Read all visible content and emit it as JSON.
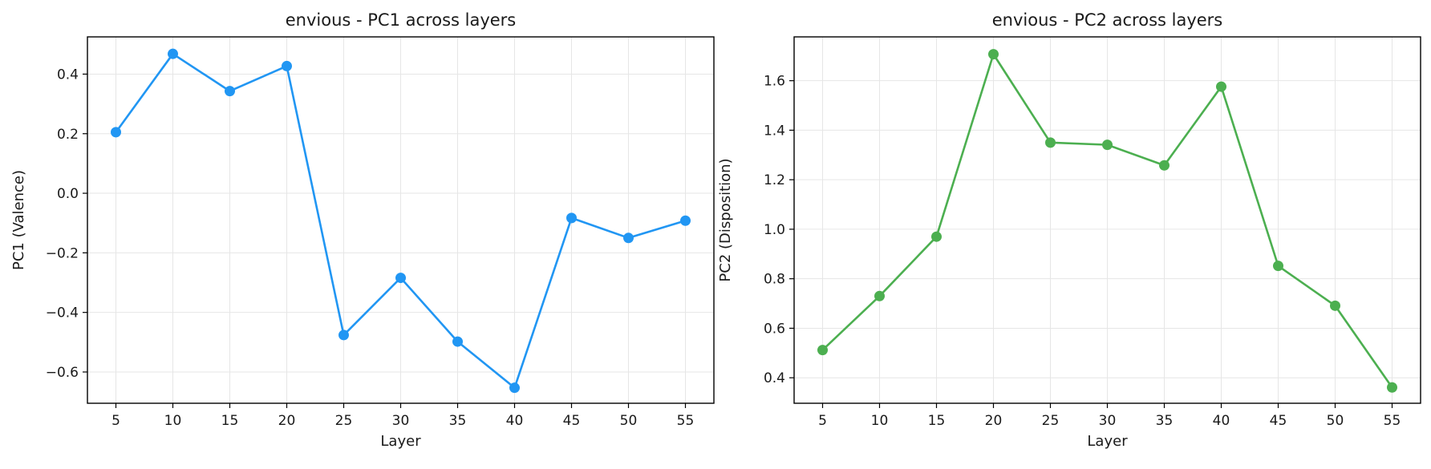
{
  "chart_data": [
    {
      "type": "line",
      "title": "envious - PC1 across layers",
      "xlabel": "Layer",
      "ylabel": "PC1 (Valence)",
      "x": [
        5,
        10,
        15,
        20,
        25,
        30,
        35,
        40,
        45,
        50,
        55
      ],
      "xticks": [
        5,
        10,
        15,
        20,
        25,
        30,
        35,
        40,
        45,
        50,
        55
      ],
      "yticks": [
        -0.6,
        -0.4,
        -0.2,
        0.0,
        0.2,
        0.4
      ],
      "ytick_labels": [
        "−0.6",
        "−0.4",
        "−0.2",
        "0.0",
        "0.2",
        "0.4"
      ],
      "xlim": [
        2.5,
        57.5
      ],
      "ylim": [
        -0.705,
        0.525
      ],
      "grid": true,
      "series": [
        {
          "values": [
            0.205,
            0.468,
            0.343,
            0.427,
            -0.476,
            -0.284,
            -0.498,
            -0.653,
            -0.083,
            -0.15,
            -0.092
          ],
          "color": "#2196F3",
          "marker": "circle"
        }
      ]
    },
    {
      "type": "line",
      "title": "envious - PC2 across layers",
      "xlabel": "Layer",
      "ylabel": "PC2 (Disposition)",
      "x": [
        5,
        10,
        15,
        20,
        25,
        30,
        35,
        40,
        45,
        50,
        55
      ],
      "xticks": [
        5,
        10,
        15,
        20,
        25,
        30,
        35,
        40,
        45,
        50,
        55
      ],
      "yticks": [
        0.4,
        0.6,
        0.8,
        1.0,
        1.2,
        1.4,
        1.6
      ],
      "ytick_labels": [
        "0.4",
        "0.6",
        "0.8",
        "1.0",
        "1.2",
        "1.4",
        "1.6"
      ],
      "xlim": [
        2.5,
        57.5
      ],
      "ylim": [
        0.297,
        1.777
      ],
      "grid": true,
      "series": [
        {
          "values": [
            0.512,
            0.73,
            0.97,
            1.707,
            1.35,
            1.341,
            1.258,
            1.576,
            0.852,
            0.691,
            0.361
          ],
          "color": "#4CAF50",
          "marker": "circle"
        }
      ]
    }
  ]
}
